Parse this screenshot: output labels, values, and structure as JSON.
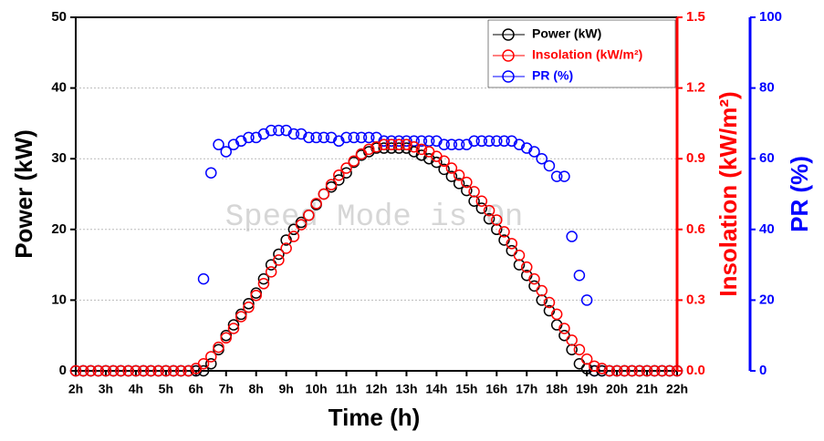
{
  "chart_data": {
    "type": "scatter",
    "title_x": "Time (h)",
    "ylabel": "Power (kW)",
    "y2label": "Insolation (kW/m²)",
    "y3label": "PR (%)",
    "annotation": "Speed Mode is On",
    "x": [
      2,
      2.25,
      2.5,
      2.75,
      3,
      3.25,
      3.5,
      3.75,
      4,
      4.25,
      4.5,
      4.75,
      5,
      5.25,
      5.5,
      5.75,
      6,
      6.25,
      6.5,
      6.75,
      7,
      7.25,
      7.5,
      7.75,
      8,
      8.25,
      8.5,
      8.75,
      9,
      9.25,
      9.5,
      9.75,
      10,
      10.25,
      10.5,
      10.75,
      11,
      11.25,
      11.5,
      11.75,
      12,
      12.25,
      12.5,
      12.75,
      13,
      13.25,
      13.5,
      13.75,
      14,
      14.25,
      14.5,
      14.75,
      15,
      15.25,
      15.5,
      15.75,
      16,
      16.25,
      16.5,
      16.75,
      17,
      17.25,
      17.5,
      17.75,
      18,
      18.25,
      18.5,
      18.75,
      19,
      19.25,
      19.5,
      19.75,
      20,
      20.25,
      20.5,
      20.75,
      21,
      21.25,
      21.5,
      21.75,
      22
    ],
    "series": [
      {
        "name": "Power (kW)",
        "color": "#000000",
        "axis": "y",
        "values": [
          0,
          0,
          0,
          0,
          0,
          0,
          0,
          0,
          0,
          0,
          0,
          0,
          0,
          0,
          0,
          0,
          0,
          0,
          1,
          3,
          5,
          6.5,
          8,
          9.5,
          11,
          13,
          15,
          16.5,
          18.5,
          20,
          21,
          22,
          23.5,
          25,
          26,
          27,
          28,
          29.5,
          30.5,
          31,
          31.5,
          31.5,
          31.5,
          31.5,
          31.5,
          31,
          30.5,
          30,
          29.5,
          28.5,
          27.5,
          26.5,
          25.5,
          24,
          23,
          21.5,
          20,
          18.5,
          17,
          15,
          13.5,
          12,
          10,
          8.5,
          6.5,
          5,
          3,
          1,
          0.3,
          0,
          0,
          0,
          0,
          0,
          0,
          0,
          0,
          0,
          0,
          0,
          0
        ]
      },
      {
        "name": "Insolation (kW/m²)",
        "color": "#ff0000",
        "axis": "y2",
        "values": [
          0,
          0,
          0,
          0,
          0,
          0,
          0,
          0,
          0,
          0,
          0,
          0,
          0,
          0,
          0,
          0,
          0.01,
          0.03,
          0.06,
          0.1,
          0.14,
          0.18,
          0.23,
          0.27,
          0.32,
          0.37,
          0.42,
          0.47,
          0.52,
          0.57,
          0.62,
          0.66,
          0.71,
          0.75,
          0.79,
          0.83,
          0.86,
          0.89,
          0.92,
          0.94,
          0.95,
          0.96,
          0.96,
          0.96,
          0.96,
          0.95,
          0.94,
          0.93,
          0.91,
          0.89,
          0.86,
          0.83,
          0.8,
          0.76,
          0.72,
          0.68,
          0.64,
          0.59,
          0.54,
          0.49,
          0.44,
          0.39,
          0.34,
          0.29,
          0.24,
          0.18,
          0.13,
          0.09,
          0.05,
          0.02,
          0.01,
          0,
          0,
          0,
          0,
          0,
          0,
          0,
          0,
          0,
          0
        ]
      },
      {
        "name": "PR (%)",
        "color": "#0000ff",
        "axis": "y3",
        "values": [
          0,
          0,
          0,
          0,
          0,
          0,
          0,
          0,
          0,
          0,
          0,
          0,
          0,
          0,
          0,
          0,
          0,
          26,
          56,
          64,
          62,
          64,
          65,
          66,
          66,
          67,
          68,
          68,
          68,
          67,
          67,
          66,
          66,
          66,
          66,
          65,
          66,
          66,
          66,
          66,
          66,
          65,
          65,
          65,
          65,
          65,
          65,
          65,
          65,
          64,
          64,
          64,
          64,
          65,
          65,
          65,
          65,
          65,
          65,
          64,
          63,
          62,
          60,
          58,
          55,
          55,
          38,
          27,
          20,
          0,
          0,
          0,
          0,
          0,
          0,
          0,
          0,
          0,
          0,
          0,
          0
        ]
      }
    ],
    "xlim": [
      2,
      22
    ],
    "xticks": [
      {
        "value": 2,
        "label": "2h"
      },
      {
        "value": 3,
        "label": "3h"
      },
      {
        "value": 4,
        "label": "4h"
      },
      {
        "value": 5,
        "label": "5h"
      },
      {
        "value": 6,
        "label": "6h"
      },
      {
        "value": 7,
        "label": "7h"
      },
      {
        "value": 8,
        "label": "8h"
      },
      {
        "value": 9,
        "label": "9h"
      },
      {
        "value": 10,
        "label": "10h"
      },
      {
        "value": 11,
        "label": "11h"
      },
      {
        "value": 12,
        "label": "12h"
      },
      {
        "value": 13,
        "label": "13h"
      },
      {
        "value": 14,
        "label": "14h"
      },
      {
        "value": 15,
        "label": "15h"
      },
      {
        "value": 16,
        "label": "16h"
      },
      {
        "value": 17,
        "label": "17h"
      },
      {
        "value": 18,
        "label": "18h"
      },
      {
        "value": 19,
        "label": "19h"
      },
      {
        "value": 20,
        "label": "20h"
      },
      {
        "value": 21,
        "label": "21h"
      },
      {
        "value": 22,
        "label": "22h"
      }
    ],
    "ylim": [
      0,
      50
    ],
    "yticks": [
      0,
      10,
      20,
      30,
      40,
      50
    ],
    "y2lim": [
      0,
      1.5
    ],
    "y2ticks": [
      {
        "value": 0,
        "label": "0.0"
      },
      0.3,
      0.6,
      0.9,
      1.2,
      1.5
    ],
    "y3lim": [
      0,
      100
    ],
    "y3ticks": [
      0,
      20,
      40,
      60,
      80,
      100
    ],
    "grid": true,
    "legend": "upper right"
  }
}
